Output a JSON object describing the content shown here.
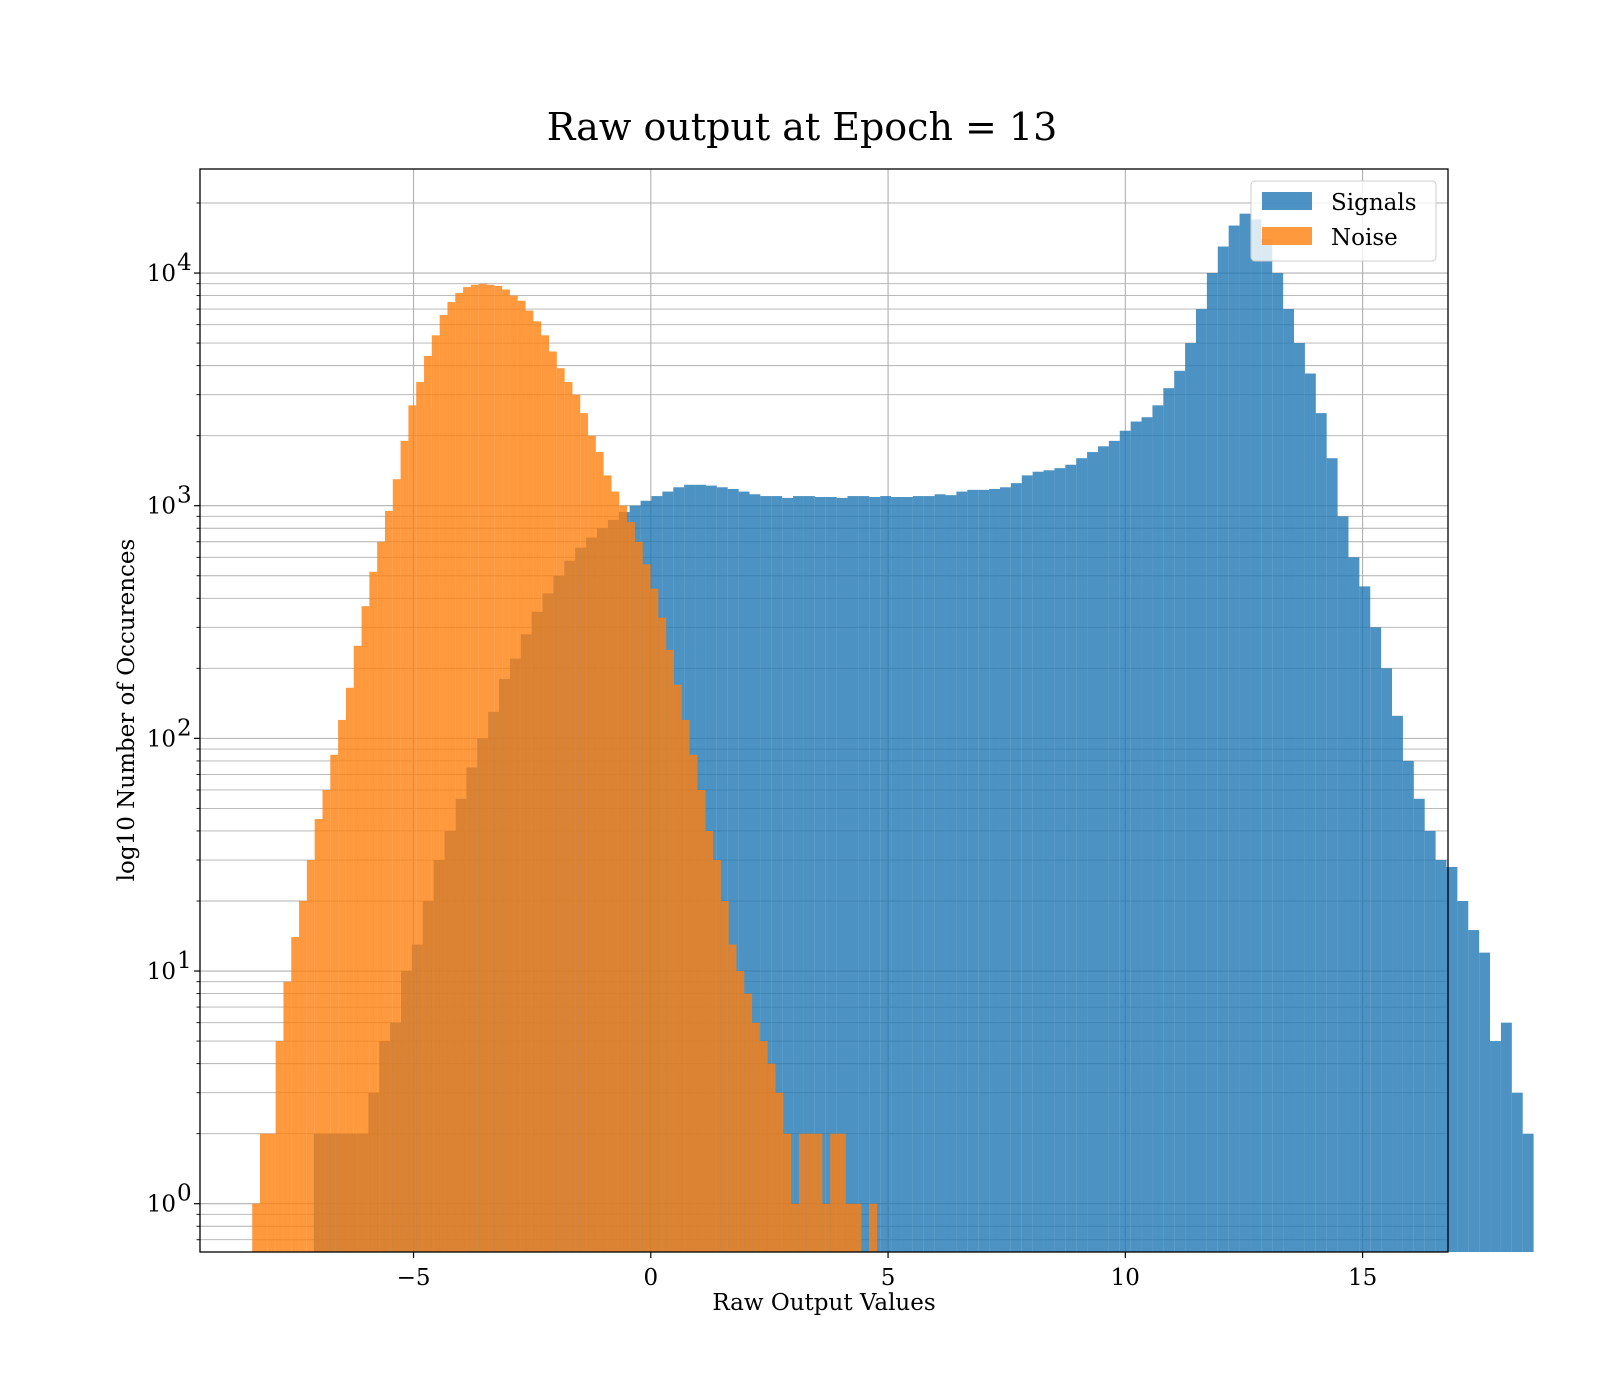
{
  "chart_data": {
    "type": "bar",
    "title": "Raw output at Epoch = 13",
    "xlabel": "Raw Output Values",
    "ylabel": "log10 Number of Occurences",
    "yscale": "log",
    "xlim": [
      -9.5,
      16.8
    ],
    "ylim": [
      0.62,
      28000
    ],
    "grid": true,
    "legend": "top-right",
    "x_ticks": [
      {
        "value": -5,
        "label": "−5"
      },
      {
        "value": 0,
        "label": "0"
      },
      {
        "value": 5,
        "label": "5"
      },
      {
        "value": 10,
        "label": "10"
      },
      {
        "value": 15,
        "label": "15"
      }
    ],
    "y_ticks": [
      {
        "value": 1,
        "label": "10",
        "exp": "0"
      },
      {
        "value": 10,
        "label": "10",
        "exp": "1"
      },
      {
        "value": 100,
        "label": "10",
        "exp": "2"
      },
      {
        "value": 1000,
        "label": "10",
        "exp": "3"
      },
      {
        "value": 10000,
        "label": "10",
        "exp": "4"
      }
    ],
    "series": [
      {
        "name": "Signals",
        "color": "#1f77b4",
        "opacity": 0.8,
        "x_start": -7.1,
        "bin_width": 0.2295,
        "values": [
          2,
          2,
          2,
          2,
          2,
          3,
          5,
          6,
          10,
          13,
          20,
          30,
          40,
          55,
          75,
          100,
          130,
          180,
          220,
          280,
          350,
          420,
          500,
          580,
          660,
          730,
          800,
          870,
          940,
          1000,
          1050,
          1100,
          1150,
          1200,
          1230,
          1230,
          1220,
          1200,
          1180,
          1150,
          1120,
          1100,
          1100,
          1080,
          1100,
          1100,
          1090,
          1090,
          1080,
          1100,
          1100,
          1090,
          1100,
          1090,
          1090,
          1100,
          1100,
          1120,
          1110,
          1150,
          1170,
          1170,
          1180,
          1200,
          1250,
          1350,
          1400,
          1420,
          1450,
          1500,
          1600,
          1700,
          1800,
          1900,
          2100,
          2300,
          2400,
          2700,
          3200,
          3800,
          5000,
          7000,
          10000,
          13000,
          16000,
          18000,
          17000,
          14000,
          10000,
          7000,
          5000,
          3700,
          2500,
          1600,
          900,
          600,
          450,
          300,
          200,
          125,
          80,
          55,
          40,
          30,
          28,
          20,
          15,
          12,
          5,
          6,
          3,
          2
        ]
      },
      {
        "name": "Noise",
        "color": "#ff7f0e",
        "opacity": 0.8,
        "x_start": -8.4,
        "bin_width": 0.1646,
        "values": [
          1,
          2,
          2,
          5,
          9,
          14,
          20,
          30,
          45,
          60,
          85,
          120,
          165,
          250,
          370,
          520,
          700,
          950,
          1300,
          1900,
          2700,
          3400,
          4400,
          5400,
          6600,
          7500,
          8200,
          8700,
          8900,
          9000,
          8900,
          8800,
          8500,
          8000,
          7600,
          6900,
          6200,
          5400,
          4600,
          3900,
          3400,
          3000,
          2500,
          2000,
          1700,
          1350,
          1150,
          1000,
          850,
          700,
          560,
          440,
          330,
          240,
          170,
          120,
          85,
          60,
          40,
          30,
          20,
          13,
          10,
          8,
          6,
          5,
          4,
          3,
          2,
          1,
          2,
          2,
          2,
          1,
          2,
          2,
          1,
          1,
          0,
          1,
          0,
          0,
          0,
          0,
          0,
          0,
          0,
          0,
          0,
          0
        ]
      }
    ]
  }
}
